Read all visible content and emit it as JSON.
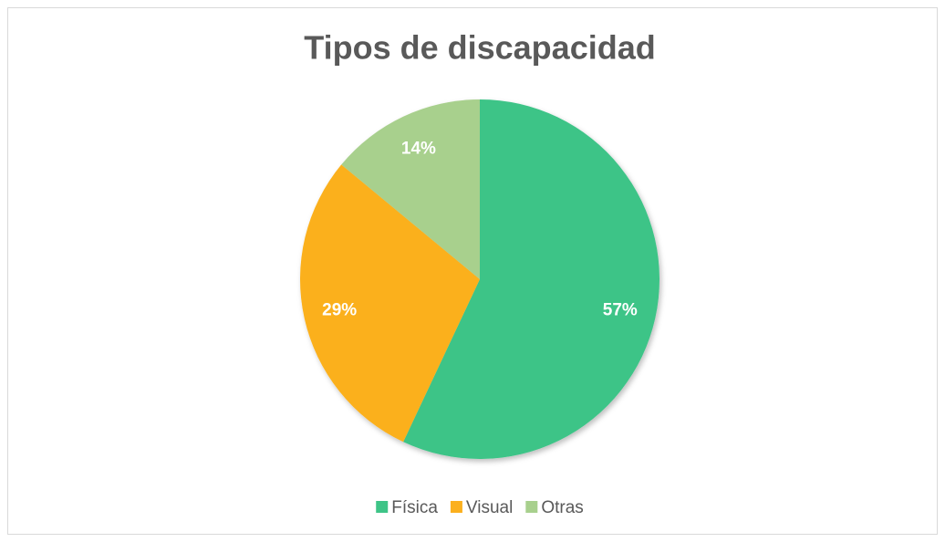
{
  "chart_data": {
    "type": "pie",
    "title": "Tipos de discapacidad",
    "categories": [
      "Física",
      "Visual",
      "Otras"
    ],
    "values": [
      57,
      29,
      14
    ],
    "value_labels": [
      "57%",
      "29%",
      "14%"
    ],
    "colors": [
      "#3ec487",
      "#fbb01e",
      "#a8d08d"
    ],
    "legend": "bottom"
  }
}
